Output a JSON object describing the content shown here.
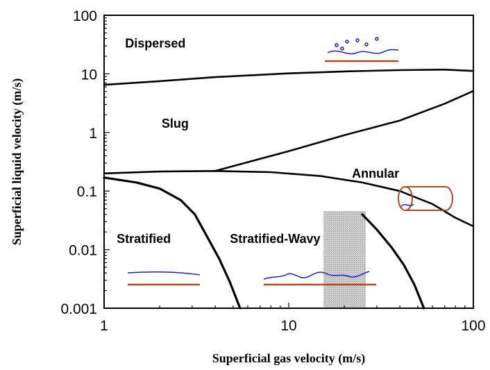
{
  "chart_data": {
    "type": "line",
    "title": "",
    "xlabel": "Superficial gas velocity (m/s)",
    "ylabel": "Superficial liquid velocity (m/s)",
    "x_scale": "log",
    "y_scale": "log",
    "xlim": [
      1,
      100
    ],
    "ylim": [
      0.001,
      100
    ],
    "x_ticks": [
      {
        "value": 1,
        "label": "1"
      },
      {
        "value": 10,
        "label": "10"
      },
      {
        "value": 100,
        "label": "100"
      }
    ],
    "y_ticks": [
      {
        "value": 0.001,
        "label": "0.001"
      },
      {
        "value": 0.01,
        "label": "0.01"
      },
      {
        "value": 0.1,
        "label": "0.1"
      },
      {
        "value": 1,
        "label": "1"
      },
      {
        "value": 10,
        "label": "10"
      },
      {
        "value": 100,
        "label": "100"
      }
    ],
    "grid": false,
    "legend": "none",
    "regions": [
      {
        "label": "Dispersed",
        "x": 1.3,
        "y": 28
      },
      {
        "label": "Slug",
        "x": 2.05,
        "y": 1.2
      },
      {
        "label": "Annular",
        "x": 22,
        "y": 0.17
      },
      {
        "label": "Stratified",
        "x": 1.17,
        "y": 0.013
      },
      {
        "label": "Stratified-Wavy",
        "x": 4.8,
        "y": 0.013
      }
    ],
    "boundaries": [
      {
        "x": [
          1,
          2,
          4,
          10,
          20,
          40,
          70,
          100
        ],
        "y": [
          6.5,
          7.5,
          8.8,
          10.2,
          11,
          11.6,
          11.8,
          11.2
        ]
      },
      {
        "x": [
          1,
          2,
          4,
          8,
          15,
          25,
          40,
          60,
          80,
          100
        ],
        "y": [
          0.2,
          0.215,
          0.22,
          0.21,
          0.18,
          0.14,
          0.1,
          0.06,
          0.035,
          0.025
        ]
      },
      {
        "x": [
          4,
          10,
          20,
          40,
          70,
          100
        ],
        "y": [
          0.22,
          0.48,
          0.9,
          1.6,
          3.1,
          5.1
        ]
      },
      {
        "x": [
          1,
          1.5,
          2,
          2.6,
          3.1,
          3.6,
          4.2,
          4.8,
          5.45
        ],
        "y": [
          0.17,
          0.14,
          0.11,
          0.07,
          0.04,
          0.017,
          0.007,
          0.0028,
          0.001
        ]
      },
      {
        "x": [
          25,
          30,
          36,
          42,
          48,
          54
        ],
        "y": [
          0.04,
          0.022,
          0.011,
          0.0055,
          0.0025,
          0.001
        ]
      }
    ],
    "shaded_band": {
      "x": [
        15.5,
        26
      ],
      "y": [
        0.001,
        0.045
      ]
    },
    "colors": {
      "boundary": "#000000",
      "interface": "#1a1ad9",
      "wall": "#b5481a",
      "band": "#c8c8c8"
    }
  }
}
